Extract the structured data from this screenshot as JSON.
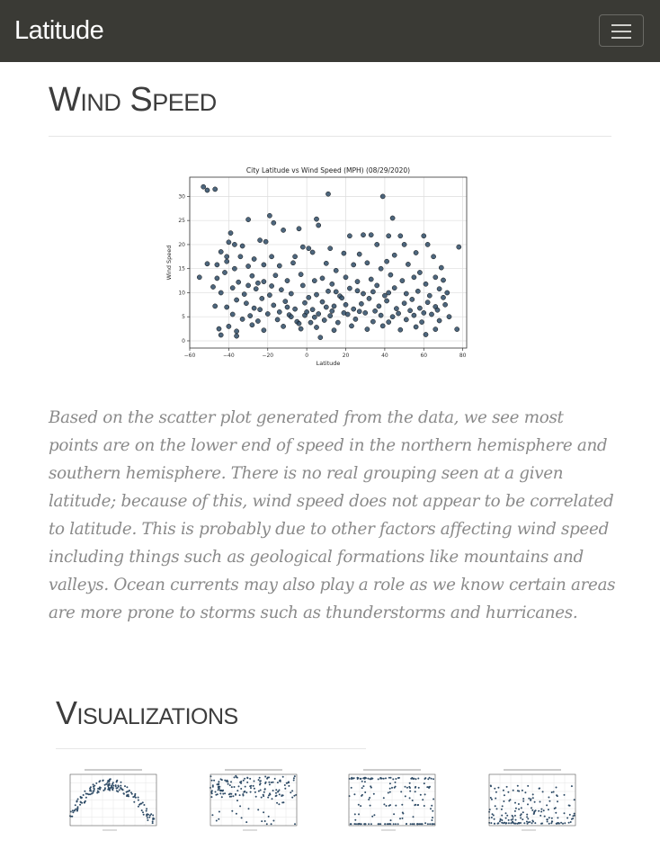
{
  "navbar": {
    "brand": "Latitude"
  },
  "section": {
    "title": "Wind Speed"
  },
  "chart_data": {
    "type": "scatter",
    "title": "City Latitude vs Wind Speed (MPH) (08/29/2020)",
    "xlabel": "Latitude",
    "ylabel": "Wind Speed",
    "xlim": [
      -60,
      82
    ],
    "ylim": [
      -1.5,
      34
    ],
    "xticks": [
      -60,
      -40,
      -20,
      0,
      20,
      40,
      60,
      80
    ],
    "yticks": [
      0,
      5,
      10,
      15,
      20,
      25,
      30
    ],
    "grid": true,
    "point_color": "#2e4b66",
    "points": [
      [
        -53,
        32
      ],
      [
        -51,
        31.3
      ],
      [
        -47,
        31.5
      ],
      [
        11,
        30.5
      ],
      [
        39,
        30
      ],
      [
        -19,
        26
      ],
      [
        44,
        25.5
      ],
      [
        -17,
        24.5
      ],
      [
        -30,
        25.2
      ],
      [
        5,
        25.3
      ],
      [
        6,
        24
      ],
      [
        -4,
        23.3
      ],
      [
        -12,
        23
      ],
      [
        -39,
        22.4
      ],
      [
        29,
        22
      ],
      [
        33,
        22
      ],
      [
        22,
        21.8
      ],
      [
        42,
        21.8
      ],
      [
        48,
        21.8
      ],
      [
        60,
        21.8
      ],
      [
        -24,
        20.9
      ],
      [
        -21,
        20.6
      ],
      [
        -40,
        20.5
      ],
      [
        -37,
        20
      ],
      [
        -33,
        19.7
      ],
      [
        -2,
        19.5
      ],
      [
        1,
        19.2
      ],
      [
        12,
        19.2
      ],
      [
        36,
        20
      ],
      [
        50,
        20
      ],
      [
        62,
        20
      ],
      [
        78,
        19.5
      ],
      [
        -44,
        18.5
      ],
      [
        -41,
        17.5
      ],
      [
        -34,
        17.5
      ],
      [
        -27,
        17
      ],
      [
        -18,
        17.5
      ],
      [
        -6,
        17.5
      ],
      [
        3,
        18.4
      ],
      [
        19,
        18.2
      ],
      [
        27,
        18
      ],
      [
        45,
        17.8
      ],
      [
        56,
        18.3
      ],
      [
        65,
        17.5
      ],
      [
        -51,
        16
      ],
      [
        -46,
        15.8
      ],
      [
        -41,
        16.5
      ],
      [
        -37,
        15
      ],
      [
        -30,
        15.5
      ],
      [
        -22,
        15.8
      ],
      [
        -14,
        15.6
      ],
      [
        -7,
        16.2
      ],
      [
        10,
        16.1
      ],
      [
        15,
        14.6
      ],
      [
        24,
        15.8
      ],
      [
        31,
        16.2
      ],
      [
        38,
        15
      ],
      [
        41,
        16.5
      ],
      [
        52,
        15.9
      ],
      [
        58,
        14.2
      ],
      [
        69,
        15.2
      ],
      [
        -55,
        13.2
      ],
      [
        -46,
        13
      ],
      [
        -42,
        14.2
      ],
      [
        -35,
        12.2
      ],
      [
        -28,
        13.5
      ],
      [
        -22,
        12.3
      ],
      [
        -16,
        13.6
      ],
      [
        -10,
        12.5
      ],
      [
        -3,
        13.8
      ],
      [
        4,
        12.5
      ],
      [
        8,
        13
      ],
      [
        13,
        11.8
      ],
      [
        20,
        13.2
      ],
      [
        26,
        12.3
      ],
      [
        33,
        12.8
      ],
      [
        36,
        11.5
      ],
      [
        43,
        13.7
      ],
      [
        49,
        12.5
      ],
      [
        55,
        13.2
      ],
      [
        61,
        11.8
      ],
      [
        66,
        13.2
      ],
      [
        70,
        12.6
      ],
      [
        -48,
        11.2
      ],
      [
        -44,
        10
      ],
      [
        -38,
        11
      ],
      [
        -32,
        9.7
      ],
      [
        -26,
        10.8
      ],
      [
        -19,
        9.5
      ],
      [
        -13,
        10.6
      ],
      [
        -8,
        9.8
      ],
      [
        -2,
        11.5
      ],
      [
        5,
        9.6
      ],
      [
        11,
        10.3
      ],
      [
        17,
        9.3
      ],
      [
        22,
        10.9
      ],
      [
        29,
        9.8
      ],
      [
        34,
        10.2
      ],
      [
        40,
        9.4
      ],
      [
        45,
        11
      ],
      [
        51,
        9.8
      ],
      [
        57,
        10.3
      ],
      [
        63,
        9.4
      ],
      [
        68,
        10.8
      ],
      [
        72,
        10
      ],
      [
        -47,
        7.2
      ],
      [
        -41,
        7
      ],
      [
        -36,
        8.5
      ],
      [
        -31,
        7.8
      ],
      [
        -27,
        6.8
      ],
      [
        -23,
        8.8
      ],
      [
        -17,
        7.4
      ],
      [
        -11,
        8.2
      ],
      [
        -6,
        6.6
      ],
      [
        -1,
        7.9
      ],
      [
        3,
        6.5
      ],
      [
        8,
        8.1
      ],
      [
        14,
        7.2
      ],
      [
        18,
        8.9
      ],
      [
        24,
        6.6
      ],
      [
        28,
        7.7
      ],
      [
        32,
        8.8
      ],
      [
        37,
        7.2
      ],
      [
        41,
        8.3
      ],
      [
        46,
        6.7
      ],
      [
        50,
        7.8
      ],
      [
        54,
        8.6
      ],
      [
        58,
        6.8
      ],
      [
        62,
        8
      ],
      [
        66,
        7.1
      ],
      [
        71,
        7.5
      ],
      [
        -38,
        5.5
      ],
      [
        -33,
        4.5
      ],
      [
        -29,
        5.2
      ],
      [
        -25,
        4.1
      ],
      [
        -20,
        5.6
      ],
      [
        -15,
        4.4
      ],
      [
        -9,
        5.4
      ],
      [
        -5,
        4
      ],
      [
        -1,
        5.3
      ],
      [
        2,
        3.8
      ],
      [
        6,
        5.6
      ],
      [
        9,
        4.3
      ],
      [
        12,
        5.2
      ],
      [
        16,
        3.8
      ],
      [
        21,
        5.5
      ],
      [
        25,
        4.5
      ],
      [
        30,
        5.8
      ],
      [
        34,
        4
      ],
      [
        38,
        5.3
      ],
      [
        42,
        3.9
      ],
      [
        47,
        5.7
      ],
      [
        51,
        4.4
      ],
      [
        55,
        5.3
      ],
      [
        59,
        3.9
      ],
      [
        64,
        5.5
      ],
      [
        68,
        4.2
      ],
      [
        73,
        5
      ],
      [
        -45,
        2.5
      ],
      [
        -36,
        2
      ],
      [
        -40,
        3
      ],
      [
        -28,
        3.3
      ],
      [
        -22,
        2.2
      ],
      [
        -12,
        3
      ],
      [
        -3,
        2.5
      ],
      [
        5,
        2.8
      ],
      [
        14,
        2.2
      ],
      [
        23,
        3.1
      ],
      [
        31,
        2.4
      ],
      [
        39,
        3.1
      ],
      [
        48,
        2.3
      ],
      [
        56,
        2.9
      ],
      [
        61,
        1.3
      ],
      [
        66,
        2.4
      ],
      [
        77,
        2.4
      ],
      [
        -44,
        1.2
      ],
      [
        -36,
        1
      ],
      [
        7,
        0.7
      ],
      [
        -8,
        5
      ],
      [
        -4,
        3.6
      ],
      [
        0,
        6
      ],
      [
        4,
        4.9
      ],
      [
        10,
        7
      ],
      [
        13,
        6.2
      ],
      [
        19,
        5.8
      ],
      [
        27,
        6.1
      ],
      [
        35,
        6.2
      ],
      [
        44,
        5
      ],
      [
        53,
        6.3
      ],
      [
        60,
        5.8
      ],
      [
        67,
        6.4
      ],
      [
        70,
        9
      ],
      [
        -18,
        11.4
      ],
      [
        -25,
        12
      ],
      [
        -30,
        11.5
      ],
      [
        26,
        10.4
      ],
      [
        -10,
        7
      ],
      [
        -14,
        6
      ],
      [
        -24,
        6.5
      ],
      [
        1,
        9
      ],
      [
        15,
        10.2
      ],
      [
        42,
        10
      ],
      [
        20,
        7.5
      ]
    ]
  },
  "paragraph": {
    "text": "Based on the scatter plot generated from the data, we see most points are on the lower end of speed in the northern hemisphere and southern hemisphere. There is no real grouping seen at a given latitude; because of this, wind speed does not appear to be correlated to latitude. This is probably due to other factors affecting wind speed including things such as geological formations like mountains and valleys. Ocean currents may also play a role as we know certain areas are more prone to storms such as thunderstorms and hurricanes."
  },
  "visualizations": {
    "title": "Visualizations",
    "thumbnails": [
      {
        "name": "thumbnail-max-temp",
        "shape": "arch"
      },
      {
        "name": "thumbnail-humidity",
        "shape": "high-band"
      },
      {
        "name": "thumbnail-cloudiness",
        "shape": "stripes"
      },
      {
        "name": "thumbnail-wind-speed",
        "shape": "low-band"
      }
    ]
  }
}
